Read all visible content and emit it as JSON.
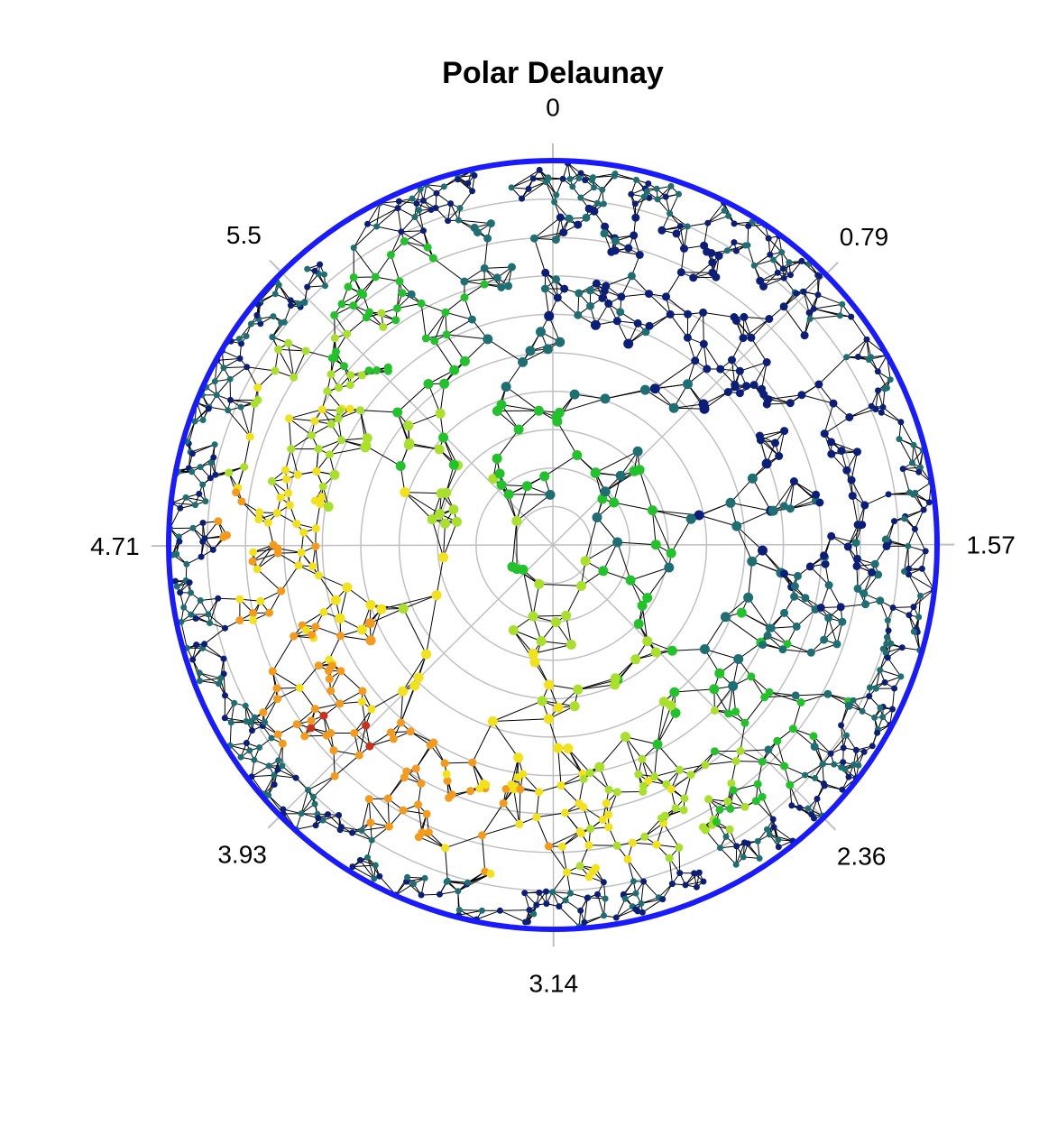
{
  "chart_data": {
    "type": "scatter",
    "coordinate_system": "polar",
    "title": "Polar Delaunay",
    "angular_ticks": [
      "0",
      "0.79",
      "1.57",
      "2.36",
      "3.14",
      "3.93",
      "4.71",
      "5.5"
    ],
    "angular_tick_values": [
      0,
      0.79,
      1.57,
      2.36,
      3.14,
      3.93,
      4.71,
      5.5
    ],
    "theta_direction": "clockwise",
    "theta_zero_location": "top",
    "radial_range": [
      0,
      1
    ],
    "radial_gridlines": [
      0.1,
      0.2,
      0.3,
      0.4,
      0.5,
      0.6,
      0.7,
      0.8,
      0.9,
      1.0
    ],
    "grid": true,
    "legend": "none",
    "overlay": "delaunay-triangulation",
    "boundary_circle": {
      "r": 1.0
    },
    "point_size_pattern": "denser toward the outer boundary",
    "color_scale": [
      "#0b1f7a",
      "#1e6f73",
      "#22c32a",
      "#a8e02a",
      "#f2e21a",
      "#f59a1a",
      "#c9311a",
      "#6a1a10"
    ],
    "colors": {
      "boundary": "#1a1aff",
      "edges": "#000000",
      "grid": "#c0c0c0"
    }
  }
}
